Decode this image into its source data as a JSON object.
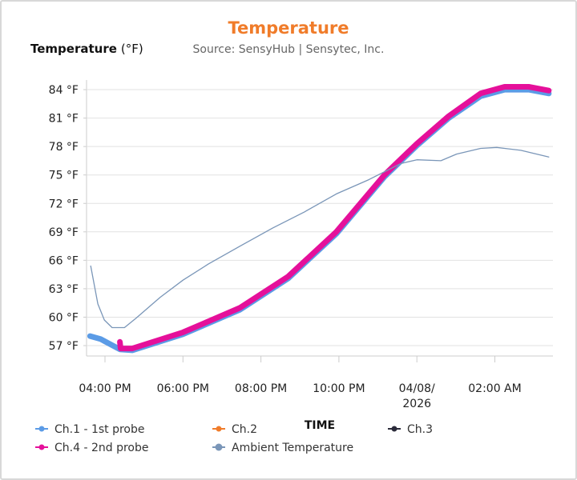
{
  "chart_data": {
    "type": "line",
    "title": "Temperature",
    "subtitle": "Source: SensyHub | Sensytec, Inc.",
    "ylabel_bold": "Temperature",
    "ylabel_unit": "(°F)",
    "xlabel": "TIME",
    "ylim": [
      55.5,
      85.5
    ],
    "yticks": [
      57,
      60,
      63,
      66,
      69,
      72,
      75,
      78,
      81,
      84
    ],
    "ytick_suffix": " °F",
    "xlim": [
      "2026-04-07T15:20",
      "2026-04-08T03:35"
    ],
    "xticks": [
      {
        "t": "2026-04-07T16:00",
        "label": [
          "04:00 PM"
        ]
      },
      {
        "t": "2026-04-07T18:00",
        "label": [
          "06:00 PM"
        ]
      },
      {
        "t": "2026-04-07T20:00",
        "label": [
          "08:00 PM"
        ]
      },
      {
        "t": "2026-04-07T22:00",
        "label": [
          "10:00 PM"
        ]
      },
      {
        "t": "2026-04-08T00:00",
        "label": [
          "04/08/",
          "2026"
        ]
      },
      {
        "t": "2026-04-08T02:00",
        "label": [
          "02:00 AM"
        ]
      }
    ],
    "grid": true,
    "legend_placement": "bottom",
    "title_color": "#f07c2a",
    "series": [
      {
        "name": "Ch.1 - 1st probe",
        "color": "#5b9be6",
        "width": 7,
        "points": [
          [
            "2026-04-07T15:37",
            58.0
          ],
          [
            "2026-04-07T15:53",
            57.7
          ],
          [
            "2026-04-07T16:23",
            56.6
          ],
          [
            "2026-04-07T16:42",
            56.5
          ],
          [
            "2026-04-07T18:00",
            58.2
          ],
          [
            "2026-04-07T19:28",
            60.8
          ],
          [
            "2026-04-07T20:42",
            64.1
          ],
          [
            "2026-04-07T21:56",
            68.8
          ],
          [
            "2026-04-07T23:10",
            74.8
          ],
          [
            "2026-04-08T00:00",
            78.1
          ],
          [
            "2026-04-08T00:49",
            81.0
          ],
          [
            "2026-04-08T01:38",
            83.3
          ],
          [
            "2026-04-08T02:15",
            84.0
          ],
          [
            "2026-04-08T02:52",
            84.0
          ],
          [
            "2026-04-08T03:23",
            83.6
          ]
        ]
      },
      {
        "name": "Ch.2",
        "color": "#f07c2a",
        "width": 2,
        "points": []
      },
      {
        "name": "Ch.3",
        "color": "#2b2b3a",
        "width": 2,
        "points": []
      },
      {
        "name": "Ch.4 - 2nd probe",
        "color": "#e5109a",
        "width": 7,
        "points": [
          [
            "2026-04-07T16:23",
            57.4
          ],
          [
            "2026-04-07T16:24",
            56.7
          ],
          [
            "2026-04-07T16:42",
            56.7
          ],
          [
            "2026-04-07T18:00",
            58.4
          ],
          [
            "2026-04-07T19:28",
            61.0
          ],
          [
            "2026-04-07T20:42",
            64.3
          ],
          [
            "2026-04-07T21:56",
            69.0
          ],
          [
            "2026-04-07T23:10",
            75.0
          ],
          [
            "2026-04-08T00:00",
            78.3
          ],
          [
            "2026-04-08T00:49",
            81.2
          ],
          [
            "2026-04-08T01:38",
            83.6
          ],
          [
            "2026-04-08T02:15",
            84.3
          ],
          [
            "2026-04-08T02:52",
            84.3
          ],
          [
            "2026-04-08T03:23",
            83.9
          ]
        ]
      },
      {
        "name": "Ambient Temperature",
        "color": "#7a96b8",
        "width": 1.3,
        "points": [
          [
            "2026-04-07T15:38",
            65.4
          ],
          [
            "2026-04-07T15:49",
            61.4
          ],
          [
            "2026-04-07T15:59",
            59.7
          ],
          [
            "2026-04-07T16:11",
            58.9
          ],
          [
            "2026-04-07T16:30",
            58.9
          ],
          [
            "2026-04-07T16:48",
            59.9
          ],
          [
            "2026-04-07T17:25",
            62.1
          ],
          [
            "2026-04-07T18:00",
            63.9
          ],
          [
            "2026-04-07T18:39",
            65.6
          ],
          [
            "2026-04-07T19:28",
            67.5
          ],
          [
            "2026-04-07T20:18",
            69.4
          ],
          [
            "2026-04-07T21:07",
            71.1
          ],
          [
            "2026-04-07T21:56",
            73.0
          ],
          [
            "2026-04-07T22:46",
            74.5
          ],
          [
            "2026-04-07T23:35",
            76.2
          ],
          [
            "2026-04-08T00:00",
            76.6
          ],
          [
            "2026-04-08T00:37",
            76.5
          ],
          [
            "2026-04-08T01:01",
            77.2
          ],
          [
            "2026-04-08T01:38",
            77.8
          ],
          [
            "2026-04-08T02:03",
            77.9
          ],
          [
            "2026-04-08T02:40",
            77.6
          ],
          [
            "2026-04-08T03:23",
            76.9
          ]
        ]
      }
    ]
  }
}
